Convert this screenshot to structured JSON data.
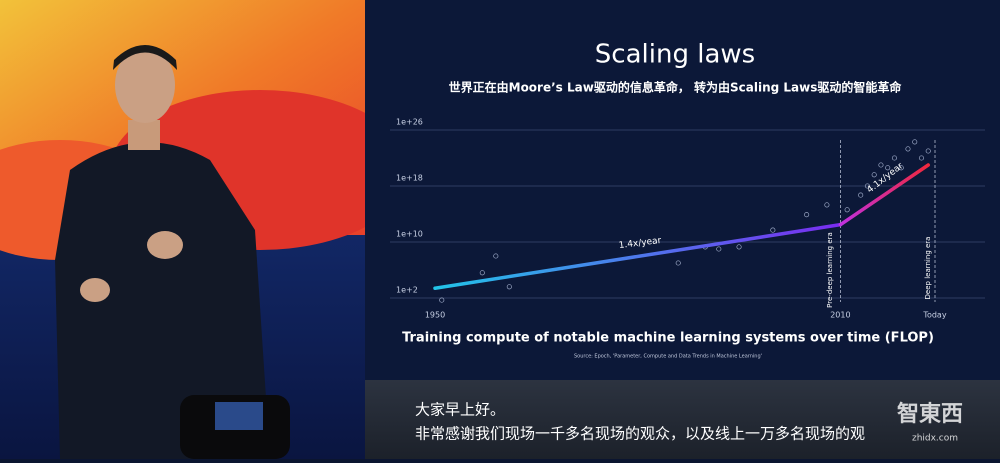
{
  "chart_data": {
    "type": "line",
    "title": "Scaling laws",
    "subtitle": "世界正在由Moore’s Law驱动的信息革命， 转为由Scaling Laws驱动的智能革命",
    "caption": "Training compute of notable machine learning systems over time (FLOP)",
    "source": "Source: Epoch, 'Parameter, Compute and Data Trends in Machine Learning'",
    "log_y": true,
    "grid": true,
    "ylim": [
      100,
      1e+26
    ],
    "yticks": [
      {
        "value": 100,
        "label": "1e+2"
      },
      {
        "value": 10000000000.0,
        "label": "1e+10"
      },
      {
        "value": 1e+18,
        "label": "1e+18"
      },
      {
        "value": 1e+26,
        "label": "1e+26"
      }
    ],
    "xlim": [
      1950,
      2024
    ],
    "xticks": [
      1950,
      2010,
      {
        "value": 2024,
        "label": "Today"
      }
    ],
    "series": [
      {
        "x": [
          1950,
          2010
        ],
        "values": [
          2500,
          3000000000000.0
        ],
        "colors": [
          "#22c4e8",
          "#7a2cf0"
        ]
      },
      {
        "x": [
          2010,
          2023
        ],
        "values": [
          3000000000000.0,
          1e+21
        ],
        "colors": [
          "#c030e0",
          "#f0283c"
        ]
      }
    ],
    "points": {
      "color": "#9aa6c4",
      "x": [
        1951,
        1957,
        1959,
        1961,
        1986,
        1990,
        1992,
        1995,
        2000,
        2005,
        2008,
        2011,
        2013,
        2014,
        2015,
        2016,
        2017,
        2018,
        2019,
        2020,
        2021,
        2022,
        2023
      ],
      "values": [
        50,
        400000.0,
        100000000.0,
        4000,
        10000000.0,
        2000000000.0,
        1000000000.0,
        2000000000.0,
        500000000000.0,
        80000000000000.0,
        2000000000000000.0,
        400000000000000.0,
        5e+16,
        1e+18,
        4e+19,
        1e+21,
        4e+20,
        1e+22,
        4e+20,
        2e+23,
        2e+24,
        1e+22,
        1e+23
      ]
    },
    "annotations": [
      "1.4x/year",
      "4.1x/year",
      "Pre-deep learning era",
      "Deep learning era"
    ]
  },
  "subtitles": {
    "lines": [
      "大家早上好。",
      "非常感谢我们现场一千多名现场的观众，以及线上一万多名现场的观"
    ]
  },
  "watermark": {
    "logo": "智東西",
    "url": "zhidx.com"
  }
}
